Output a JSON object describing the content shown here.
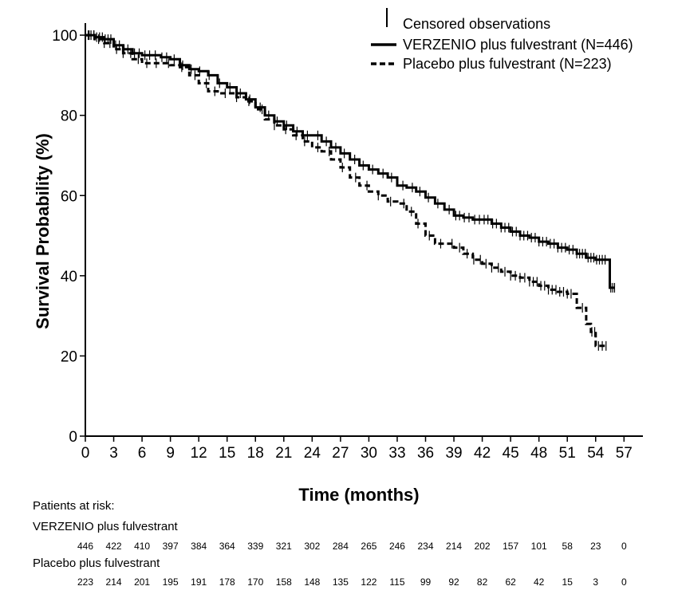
{
  "chart_data": {
    "type": "line",
    "title": "",
    "xlabel": "Time (months)",
    "ylabel": "Survival Probability (%)",
    "xlim": [
      0,
      59
    ],
    "ylim": [
      0,
      103
    ],
    "x_ticks": [
      0,
      3,
      6,
      9,
      12,
      15,
      18,
      21,
      24,
      27,
      30,
      33,
      36,
      39,
      42,
      45,
      48,
      51,
      54,
      57
    ],
    "y_ticks": [
      0,
      20,
      40,
      60,
      80,
      100
    ],
    "grid": false,
    "legend_position": "top-right",
    "legend": {
      "censored_label": "Censored observations"
    },
    "series": [
      {
        "name": "VERZENIO plus fulvestrant (N=446)",
        "style": "solid",
        "color": "#000000",
        "x": [
          0,
          1,
          2,
          3,
          4,
          5,
          6,
          7,
          8,
          9,
          10,
          11,
          12,
          13,
          14,
          15,
          16,
          17,
          18,
          19,
          20,
          21,
          22,
          23,
          24,
          25,
          26,
          27,
          28,
          29,
          30,
          31,
          32,
          33,
          34,
          35,
          36,
          37,
          38,
          39,
          40,
          41,
          42,
          43,
          44,
          45,
          46,
          47,
          48,
          49,
          50,
          51,
          52,
          53,
          54,
          55,
          55.3,
          55.5,
          56
        ],
        "y": [
          100,
          99.5,
          99,
          97.5,
          96.5,
          95.5,
          95,
          95,
          94.5,
          94,
          92.5,
          91.5,
          91,
          90,
          88,
          87,
          85.5,
          84,
          82,
          80,
          78.5,
          77.5,
          76,
          75,
          75,
          73.5,
          72,
          70.5,
          69,
          67.5,
          66.5,
          65.5,
          64.5,
          62.5,
          62,
          61,
          59.5,
          58,
          56.5,
          55,
          54.5,
          54,
          54,
          53,
          52,
          51,
          50,
          49.5,
          48.5,
          48,
          47,
          46.5,
          45.5,
          44.5,
          44,
          44,
          44,
          37,
          37
        ]
      },
      {
        "name": "Placebo plus fulvestrant (N=223)",
        "style": "dashed",
        "color": "#000000",
        "x": [
          0,
          1,
          2,
          3,
          4,
          5,
          6,
          7,
          8,
          9,
          10,
          11,
          12,
          13,
          14,
          15,
          16,
          17,
          18,
          19,
          20,
          21,
          22,
          23,
          24,
          25,
          26,
          27,
          28,
          29,
          30,
          31,
          32,
          33,
          34,
          35,
          36,
          37,
          38,
          39,
          40,
          41,
          42,
          43,
          44,
          45,
          46,
          47,
          48,
          49,
          50,
          51,
          52,
          53,
          53.5,
          54,
          55
        ],
        "y": [
          100,
          99,
          98,
          96.5,
          95.5,
          94,
          93,
          93,
          93,
          92.5,
          92,
          90,
          88,
          86,
          85.5,
          85.5,
          84.5,
          83.5,
          81.5,
          79,
          77.5,
          76.5,
          75,
          73.5,
          72,
          71,
          69,
          67,
          64.5,
          62.5,
          61,
          60,
          58.5,
          58,
          56,
          53,
          50,
          48,
          48,
          47,
          45.5,
          44,
          43,
          42,
          41,
          40,
          39.5,
          38.5,
          37.5,
          36.5,
          36,
          35.5,
          32,
          28,
          26,
          22.5,
          22.5
        ]
      }
    ],
    "censored_marks": [
      {
        "series": 0,
        "x": [
          0.3,
          0.6,
          0.9,
          1.2,
          1.5,
          1.8,
          2.1,
          2.4,
          2.7,
          3.2,
          3.6,
          4.1,
          4.5,
          5.2,
          5.7,
          6.3,
          6.8,
          7.4,
          8.1,
          8.6,
          9.4,
          10.3,
          11.2,
          12.1,
          13.1,
          14.2,
          15.3,
          16.4,
          17.4,
          18.5,
          19.4,
          20.3,
          21.3,
          22.4,
          23.5,
          24.6,
          25.5,
          26.5,
          27.4,
          28.5,
          29.4,
          30.4,
          31.5,
          32.4,
          33.6,
          34.6,
          35.4,
          36.3,
          37.3,
          38.5,
          39.2,
          39.6,
          40.1,
          40.6,
          41.2,
          41.7,
          42.2,
          42.6,
          43.1,
          43.5,
          44.0,
          44.4,
          44.8,
          45.2,
          45.6,
          46.0,
          46.4,
          46.8,
          47.2,
          47.6,
          48.0,
          48.4,
          48.8,
          49.2,
          49.6,
          50.0,
          50.4,
          50.8,
          51.2,
          51.6,
          52.0,
          52.3,
          52.6,
          52.9,
          53.2,
          53.5,
          53.8,
          54.1,
          54.4,
          54.7,
          55.0,
          55.6,
          55.8,
          56.0
        ]
      },
      {
        "series": 1,
        "x": [
          0.4,
          0.9,
          1.4,
          2.0,
          2.6,
          3.3,
          4.0,
          4.8,
          5.6,
          6.5,
          7.5,
          8.8,
          10.2,
          11.6,
          12.8,
          13.7,
          14.8,
          16.0,
          17.3,
          18.7,
          20.0,
          21.2,
          22.3,
          23.2,
          24.6,
          25.8,
          27.2,
          28.6,
          29.8,
          31.0,
          32.3,
          33.7,
          34.5,
          35.2,
          36.4,
          37.6,
          38.8,
          39.6,
          40.4,
          41.1,
          41.8,
          42.4,
          43.0,
          43.7,
          44.4,
          45.0,
          45.5,
          46.0,
          46.5,
          47.0,
          47.4,
          47.8,
          48.2,
          48.6,
          49.0,
          49.4,
          49.8,
          50.2,
          50.6,
          51.0,
          51.4,
          52.6,
          53.6,
          53.9,
          54.3,
          54.7,
          55.1
        ]
      }
    ],
    "risk_table": {
      "heading": "Patients at risk:",
      "times": [
        0,
        3,
        6,
        9,
        12,
        15,
        18,
        21,
        24,
        27,
        30,
        33,
        36,
        39,
        42,
        45,
        48,
        51,
        54,
        57
      ],
      "groups": [
        {
          "label": "VERZENIO plus fulvestrant",
          "counts": [
            "446",
            "422",
            "410",
            "397",
            "384",
            "364",
            "339",
            "321",
            "302",
            "284",
            "265",
            "246",
            "234",
            "214",
            "202",
            "157",
            "101",
            "58",
            "23",
            "0"
          ]
        },
        {
          "label": "Placebo plus fulvestrant",
          "counts": [
            "223",
            "214",
            "201",
            "195",
            "191",
            "178",
            "170",
            "158",
            "148",
            "135",
            "122",
            "115",
            "99",
            "92",
            "82",
            "62",
            "42",
            "15",
            "3",
            "0"
          ]
        }
      ]
    }
  }
}
